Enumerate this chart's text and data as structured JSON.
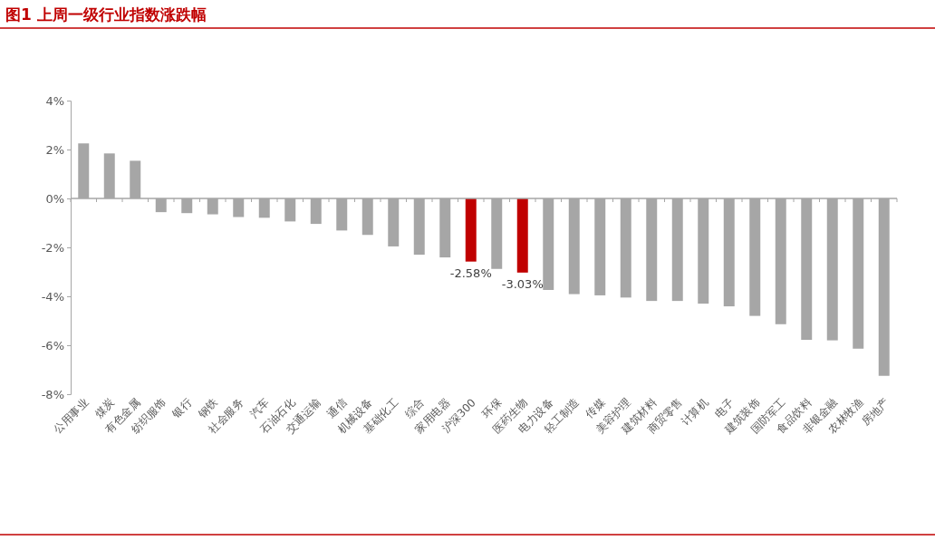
{
  "chart_data": {
    "type": "bar",
    "title": "图1  上周一级行业指数涨跌幅",
    "categories": [
      "公用事业",
      "煤炭",
      "有色金属",
      "纺织服饰",
      "银行",
      "钢铁",
      "社会服务",
      "汽车",
      "石油石化",
      "交通运输",
      "通信",
      "机械设备",
      "基础化工",
      "综合",
      "家用电器",
      "沪深300",
      "环保",
      "医药生物",
      "电力设备",
      "轻工制造",
      "传媒",
      "美容护理",
      "建筑材料",
      "商贸零售",
      "计算机",
      "电子",
      "建筑装饰",
      "国防军工",
      "食品饮料",
      "非银金融",
      "农林牧渔",
      "房地产"
    ],
    "values": [
      2.25,
      1.84,
      1.54,
      -0.56,
      -0.6,
      -0.65,
      -0.76,
      -0.79,
      -0.94,
      -1.04,
      -1.31,
      -1.49,
      -1.96,
      -2.3,
      -2.41,
      -2.58,
      -2.88,
      -3.03,
      -3.74,
      -3.91,
      -3.96,
      -4.05,
      -4.19,
      -4.19,
      -4.3,
      -4.41,
      -4.8,
      -5.14,
      -5.78,
      -5.8,
      -6.14,
      -7.25
    ],
    "colors": [
      "#a6a6a6",
      "#a6a6a6",
      "#a6a6a6",
      "#a6a6a6",
      "#a6a6a6",
      "#a6a6a6",
      "#a6a6a6",
      "#a6a6a6",
      "#a6a6a6",
      "#a6a6a6",
      "#a6a6a6",
      "#a6a6a6",
      "#a6a6a6",
      "#a6a6a6",
      "#a6a6a6",
      "#c00000",
      "#a6a6a6",
      "#c00000",
      "#a6a6a6",
      "#a6a6a6",
      "#a6a6a6",
      "#a6a6a6",
      "#a6a6a6",
      "#a6a6a6",
      "#a6a6a6",
      "#a6a6a6",
      "#a6a6a6",
      "#a6a6a6",
      "#a6a6a6",
      "#a6a6a6",
      "#a6a6a6",
      "#a6a6a6"
    ],
    "value_labels": [
      null,
      null,
      null,
      null,
      null,
      null,
      null,
      null,
      null,
      null,
      null,
      null,
      null,
      null,
      null,
      "-2.58%",
      null,
      "-3.03%",
      null,
      null,
      null,
      null,
      null,
      null,
      null,
      null,
      null,
      null,
      null,
      null,
      null,
      null
    ],
    "ylim": [
      -8,
      4
    ],
    "yticks": [
      {
        "value": -8,
        "label": "-8%"
      },
      {
        "value": -6,
        "label": "-6%"
      },
      {
        "value": -4,
        "label": "-4%"
      },
      {
        "value": -2,
        "label": "-2%"
      },
      {
        "value": 0,
        "label": "0%"
      },
      {
        "value": 2,
        "label": "2%"
      },
      {
        "value": 4,
        "label": "4%"
      }
    ]
  }
}
